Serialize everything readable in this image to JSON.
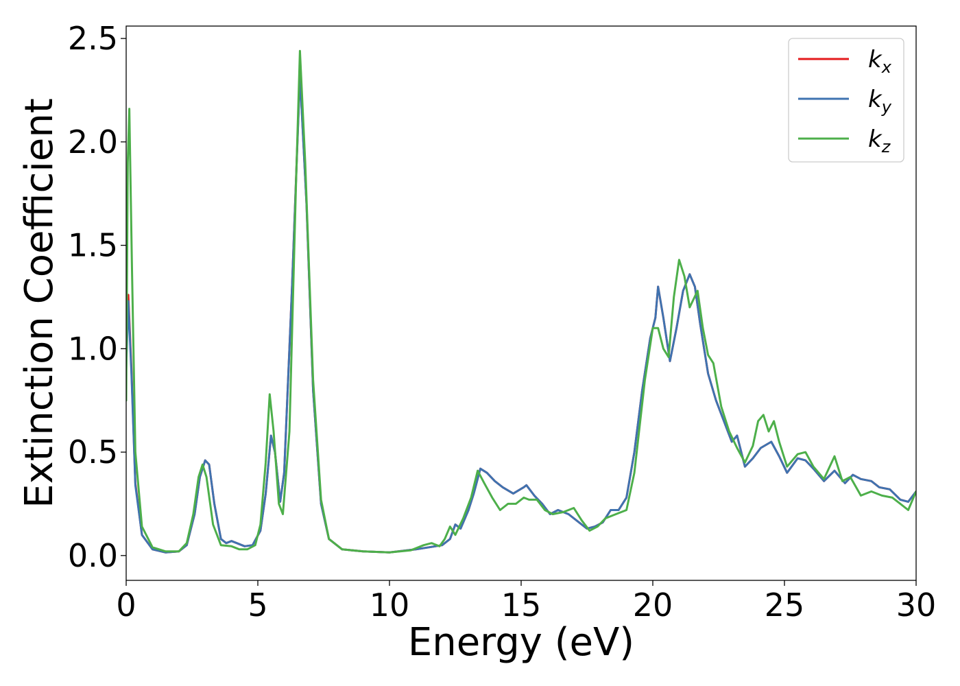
{
  "chart_data": {
    "type": "line",
    "title": "",
    "xlabel": "Energy (eV)",
    "ylabel": "Extinction Coefficient",
    "xlim": [
      0,
      30
    ],
    "ylim": [
      -0.12,
      2.56
    ],
    "xticks": [
      0,
      5,
      10,
      15,
      20,
      25,
      30
    ],
    "xtick_labels": [
      "0",
      "5",
      "10",
      "15",
      "20",
      "25",
      "30"
    ],
    "yticks": [
      0.0,
      0.5,
      1.0,
      1.5,
      2.0,
      2.5
    ],
    "ytick_labels": [
      "0.0",
      "0.5",
      "1.0",
      "1.5",
      "2.0",
      "2.5"
    ],
    "grid": false,
    "legend_position": "top-right",
    "series": [
      {
        "name": "k",
        "subscript": "x",
        "color": "#e41a1c",
        "points": [
          [
            0,
            0.95
          ],
          [
            0.08,
            1.26
          ],
          [
            0.2,
            0.9
          ],
          [
            0.35,
            0.35
          ],
          [
            0.6,
            0.1
          ],
          [
            1,
            0.03
          ],
          [
            1.5,
            0.015
          ],
          [
            2,
            0.02
          ],
          [
            2.3,
            0.05
          ],
          [
            2.6,
            0.2
          ],
          [
            2.8,
            0.38
          ],
          [
            3.0,
            0.46
          ],
          [
            3.15,
            0.44
          ],
          [
            3.35,
            0.25
          ],
          [
            3.6,
            0.08
          ],
          [
            3.8,
            0.06
          ],
          [
            4.0,
            0.07
          ],
          [
            4.2,
            0.06
          ],
          [
            4.5,
            0.045
          ],
          [
            4.8,
            0.05
          ],
          [
            5.1,
            0.12
          ],
          [
            5.3,
            0.3
          ],
          [
            5.5,
            0.58
          ],
          [
            5.65,
            0.5
          ],
          [
            5.85,
            0.26
          ],
          [
            6.0,
            0.4
          ],
          [
            6.3,
            1.3
          ],
          [
            6.6,
            2.33
          ],
          [
            6.85,
            1.7
          ],
          [
            7.1,
            0.8
          ],
          [
            7.4,
            0.25
          ],
          [
            7.7,
            0.08
          ],
          [
            8.2,
            0.03
          ],
          [
            9,
            0.02
          ],
          [
            10,
            0.015
          ],
          [
            11,
            0.03
          ],
          [
            11.5,
            0.04
          ],
          [
            12,
            0.05
          ],
          [
            12.3,
            0.08
          ],
          [
            12.5,
            0.15
          ],
          [
            12.7,
            0.13
          ],
          [
            13,
            0.22
          ],
          [
            13.2,
            0.3
          ],
          [
            13.45,
            0.42
          ],
          [
            13.7,
            0.4
          ],
          [
            14,
            0.36
          ],
          [
            14.3,
            0.33
          ],
          [
            14.7,
            0.3
          ],
          [
            15.1,
            0.33
          ],
          [
            15.2,
            0.34
          ],
          [
            15.5,
            0.29
          ],
          [
            15.8,
            0.25
          ],
          [
            16.1,
            0.2
          ],
          [
            16.4,
            0.22
          ],
          [
            16.8,
            0.2
          ],
          [
            17.2,
            0.16
          ],
          [
            17.5,
            0.13
          ],
          [
            17.8,
            0.14
          ],
          [
            18.1,
            0.16
          ],
          [
            18.4,
            0.22
          ],
          [
            18.7,
            0.22
          ],
          [
            19.0,
            0.28
          ],
          [
            19.3,
            0.5
          ],
          [
            19.6,
            0.8
          ],
          [
            19.9,
            1.05
          ],
          [
            20.1,
            1.15
          ],
          [
            20.2,
            1.3
          ],
          [
            20.4,
            1.15
          ],
          [
            20.65,
            0.94
          ],
          [
            20.9,
            1.1
          ],
          [
            21.15,
            1.28
          ],
          [
            21.4,
            1.36
          ],
          [
            21.6,
            1.3
          ],
          [
            21.8,
            1.12
          ],
          [
            22.1,
            0.88
          ],
          [
            22.4,
            0.75
          ],
          [
            22.7,
            0.65
          ],
          [
            23.0,
            0.55
          ],
          [
            23.2,
            0.58
          ],
          [
            23.5,
            0.43
          ],
          [
            23.8,
            0.47
          ],
          [
            24.1,
            0.52
          ],
          [
            24.5,
            0.55
          ],
          [
            24.8,
            0.48
          ],
          [
            25.1,
            0.4
          ],
          [
            25.5,
            0.47
          ],
          [
            25.8,
            0.46
          ],
          [
            26.1,
            0.42
          ],
          [
            26.5,
            0.36
          ],
          [
            26.9,
            0.41
          ],
          [
            27.3,
            0.35
          ],
          [
            27.6,
            0.39
          ],
          [
            27.9,
            0.37
          ],
          [
            28.3,
            0.36
          ],
          [
            28.6,
            0.33
          ],
          [
            29.0,
            0.32
          ],
          [
            29.4,
            0.27
          ],
          [
            29.7,
            0.26
          ],
          [
            30,
            0.31
          ]
        ]
      },
      {
        "name": "k",
        "subscript": "y",
        "color": "#3f73b0",
        "points": [
          [
            0,
            0.9
          ],
          [
            0.08,
            1.23
          ],
          [
            0.2,
            0.88
          ],
          [
            0.35,
            0.34
          ],
          [
            0.6,
            0.1
          ],
          [
            1,
            0.03
          ],
          [
            1.5,
            0.015
          ],
          [
            2,
            0.02
          ],
          [
            2.3,
            0.05
          ],
          [
            2.6,
            0.2
          ],
          [
            2.8,
            0.38
          ],
          [
            3.0,
            0.46
          ],
          [
            3.15,
            0.44
          ],
          [
            3.35,
            0.25
          ],
          [
            3.6,
            0.08
          ],
          [
            3.8,
            0.06
          ],
          [
            4.0,
            0.07
          ],
          [
            4.2,
            0.06
          ],
          [
            4.5,
            0.045
          ],
          [
            4.8,
            0.05
          ],
          [
            5.1,
            0.12
          ],
          [
            5.3,
            0.3
          ],
          [
            5.5,
            0.58
          ],
          [
            5.65,
            0.5
          ],
          [
            5.85,
            0.26
          ],
          [
            6.0,
            0.4
          ],
          [
            6.3,
            1.3
          ],
          [
            6.6,
            2.32
          ],
          [
            6.85,
            1.7
          ],
          [
            7.1,
            0.8
          ],
          [
            7.4,
            0.25
          ],
          [
            7.7,
            0.08
          ],
          [
            8.2,
            0.03
          ],
          [
            9,
            0.02
          ],
          [
            10,
            0.015
          ],
          [
            11,
            0.03
          ],
          [
            11.5,
            0.04
          ],
          [
            12,
            0.05
          ],
          [
            12.3,
            0.08
          ],
          [
            12.5,
            0.15
          ],
          [
            12.7,
            0.13
          ],
          [
            13,
            0.22
          ],
          [
            13.2,
            0.3
          ],
          [
            13.45,
            0.42
          ],
          [
            13.7,
            0.4
          ],
          [
            14,
            0.36
          ],
          [
            14.3,
            0.33
          ],
          [
            14.7,
            0.3
          ],
          [
            15.1,
            0.33
          ],
          [
            15.2,
            0.34
          ],
          [
            15.5,
            0.29
          ],
          [
            15.8,
            0.25
          ],
          [
            16.1,
            0.2
          ],
          [
            16.4,
            0.22
          ],
          [
            16.8,
            0.2
          ],
          [
            17.2,
            0.16
          ],
          [
            17.5,
            0.13
          ],
          [
            17.8,
            0.14
          ],
          [
            18.1,
            0.16
          ],
          [
            18.4,
            0.22
          ],
          [
            18.7,
            0.22
          ],
          [
            19.0,
            0.28
          ],
          [
            19.3,
            0.5
          ],
          [
            19.6,
            0.8
          ],
          [
            19.9,
            1.05
          ],
          [
            20.1,
            1.15
          ],
          [
            20.2,
            1.3
          ],
          [
            20.4,
            1.15
          ],
          [
            20.65,
            0.94
          ],
          [
            20.9,
            1.1
          ],
          [
            21.15,
            1.28
          ],
          [
            21.4,
            1.36
          ],
          [
            21.6,
            1.3
          ],
          [
            21.8,
            1.12
          ],
          [
            22.1,
            0.88
          ],
          [
            22.4,
            0.75
          ],
          [
            22.7,
            0.65
          ],
          [
            23.0,
            0.55
          ],
          [
            23.2,
            0.58
          ],
          [
            23.5,
            0.43
          ],
          [
            23.8,
            0.47
          ],
          [
            24.1,
            0.52
          ],
          [
            24.5,
            0.55
          ],
          [
            24.8,
            0.48
          ],
          [
            25.1,
            0.4
          ],
          [
            25.5,
            0.47
          ],
          [
            25.8,
            0.46
          ],
          [
            26.1,
            0.42
          ],
          [
            26.5,
            0.36
          ],
          [
            26.9,
            0.41
          ],
          [
            27.3,
            0.35
          ],
          [
            27.6,
            0.39
          ],
          [
            27.9,
            0.37
          ],
          [
            28.3,
            0.36
          ],
          [
            28.6,
            0.33
          ],
          [
            29.0,
            0.32
          ],
          [
            29.4,
            0.27
          ],
          [
            29.7,
            0.26
          ],
          [
            30,
            0.31
          ]
        ]
      },
      {
        "name": "k",
        "subscript": "z",
        "color": "#4daf4a",
        "points": [
          [
            0,
            0.75
          ],
          [
            0.06,
            1.9
          ],
          [
            0.12,
            2.16
          ],
          [
            0.22,
            1.4
          ],
          [
            0.35,
            0.5
          ],
          [
            0.6,
            0.14
          ],
          [
            1,
            0.04
          ],
          [
            1.5,
            0.02
          ],
          [
            2,
            0.02
          ],
          [
            2.3,
            0.06
          ],
          [
            2.55,
            0.2
          ],
          [
            2.75,
            0.38
          ],
          [
            2.9,
            0.44
          ],
          [
            3.05,
            0.38
          ],
          [
            3.3,
            0.15
          ],
          [
            3.6,
            0.05
          ],
          [
            4.0,
            0.045
          ],
          [
            4.3,
            0.03
          ],
          [
            4.6,
            0.03
          ],
          [
            4.9,
            0.05
          ],
          [
            5.1,
            0.15
          ],
          [
            5.3,
            0.45
          ],
          [
            5.45,
            0.78
          ],
          [
            5.6,
            0.6
          ],
          [
            5.8,
            0.25
          ],
          [
            5.95,
            0.2
          ],
          [
            6.2,
            0.6
          ],
          [
            6.45,
            1.8
          ],
          [
            6.6,
            2.44
          ],
          [
            6.8,
            1.9
          ],
          [
            7.1,
            0.85
          ],
          [
            7.4,
            0.27
          ],
          [
            7.7,
            0.08
          ],
          [
            8.2,
            0.03
          ],
          [
            9,
            0.02
          ],
          [
            10,
            0.015
          ],
          [
            10.8,
            0.025
          ],
          [
            11.3,
            0.05
          ],
          [
            11.6,
            0.06
          ],
          [
            11.9,
            0.045
          ],
          [
            12.1,
            0.08
          ],
          [
            12.3,
            0.14
          ],
          [
            12.5,
            0.1
          ],
          [
            12.8,
            0.18
          ],
          [
            13.1,
            0.28
          ],
          [
            13.35,
            0.41
          ],
          [
            13.6,
            0.35
          ],
          [
            13.9,
            0.28
          ],
          [
            14.2,
            0.22
          ],
          [
            14.5,
            0.25
          ],
          [
            14.8,
            0.25
          ],
          [
            15.1,
            0.28
          ],
          [
            15.3,
            0.27
          ],
          [
            15.6,
            0.27
          ],
          [
            15.9,
            0.22
          ],
          [
            16.2,
            0.2
          ],
          [
            16.6,
            0.21
          ],
          [
            17.0,
            0.23
          ],
          [
            17.3,
            0.17
          ],
          [
            17.6,
            0.12
          ],
          [
            17.9,
            0.14
          ],
          [
            18.2,
            0.18
          ],
          [
            18.6,
            0.2
          ],
          [
            19.0,
            0.22
          ],
          [
            19.3,
            0.4
          ],
          [
            19.7,
            0.85
          ],
          [
            20.0,
            1.1
          ],
          [
            20.2,
            1.1
          ],
          [
            20.4,
            1.0
          ],
          [
            20.6,
            0.96
          ],
          [
            20.8,
            1.25
          ],
          [
            21.0,
            1.43
          ],
          [
            21.2,
            1.35
          ],
          [
            21.4,
            1.2
          ],
          [
            21.7,
            1.28
          ],
          [
            21.9,
            1.1
          ],
          [
            22.1,
            0.97
          ],
          [
            22.3,
            0.93
          ],
          [
            22.6,
            0.72
          ],
          [
            22.9,
            0.6
          ],
          [
            23.2,
            0.52
          ],
          [
            23.5,
            0.45
          ],
          [
            23.8,
            0.53
          ],
          [
            24.0,
            0.65
          ],
          [
            24.2,
            0.68
          ],
          [
            24.4,
            0.6
          ],
          [
            24.6,
            0.65
          ],
          [
            24.8,
            0.55
          ],
          [
            25.1,
            0.43
          ],
          [
            25.5,
            0.49
          ],
          [
            25.8,
            0.5
          ],
          [
            26.1,
            0.43
          ],
          [
            26.5,
            0.37
          ],
          [
            26.9,
            0.48
          ],
          [
            27.2,
            0.36
          ],
          [
            27.5,
            0.38
          ],
          [
            27.9,
            0.29
          ],
          [
            28.3,
            0.31
          ],
          [
            28.7,
            0.29
          ],
          [
            29.1,
            0.28
          ],
          [
            29.4,
            0.25
          ],
          [
            29.7,
            0.22
          ],
          [
            30,
            0.31
          ]
        ]
      }
    ]
  }
}
